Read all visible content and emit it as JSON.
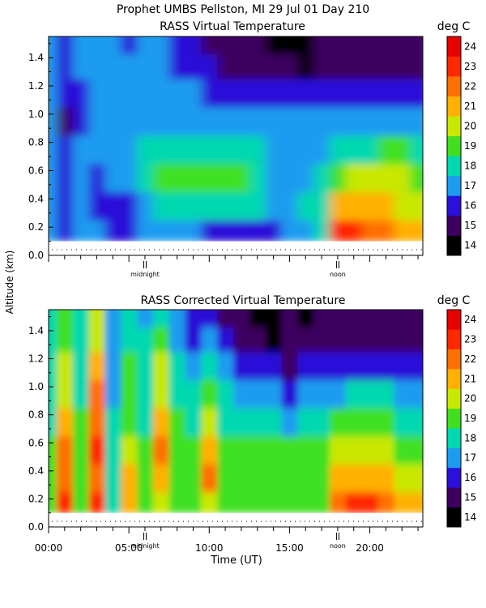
{
  "header": {
    "title": "Prophet  UMBS Pellston, MI  29 Jul 01 Day 210"
  },
  "shared": {
    "ylabel": "Altitude (km)",
    "xlabel": "Time (UT)",
    "x_tick_labels": [
      "00:00",
      "05:00",
      "10:00",
      "15:00",
      "20:00"
    ],
    "x_ticks_hours": [
      0,
      5,
      10,
      15,
      20
    ],
    "markers": [
      {
        "label": "midnight",
        "hour": 6
      },
      {
        "label": "noon",
        "hour": 18
      }
    ]
  },
  "chart_data": [
    {
      "type": "heatmap",
      "title": "RASS Virtual Temperature",
      "colorbar_label": "deg C",
      "xlim_hours": [
        0,
        23.3
      ],
      "ylim": [
        0.0,
        1.55
      ],
      "y_ticks": [
        0.0,
        0.2,
        0.4,
        0.6,
        0.8,
        1.0,
        1.2,
        1.4
      ],
      "colorbar_levels": [
        14,
        15,
        16,
        17,
        18,
        19,
        20,
        21,
        22,
        23,
        24
      ],
      "colorbar_colors": [
        "#000000",
        "#3d0060",
        "#2a10d8",
        "#1c9cf0",
        "#00d8b0",
        "#40e020",
        "#c8e800",
        "#ffb000",
        "#ff7000",
        "#ff2800",
        "#e80000"
      ],
      "x_hours": [
        0,
        1,
        2,
        3,
        4,
        5,
        6,
        7,
        8,
        9,
        10,
        11,
        12,
        13,
        14,
        15,
        16,
        17,
        18,
        19,
        20,
        21,
        22,
        23
      ],
      "y_km": [
        0.15,
        0.35,
        0.55,
        0.75,
        0.95,
        1.15,
        1.35,
        1.5
      ],
      "z_degC": [
        [
          17,
          16,
          17,
          17,
          16,
          16,
          17,
          17,
          17,
          17,
          16,
          16,
          16,
          16,
          16,
          17,
          17,
          18,
          23,
          23,
          22,
          22,
          21,
          21
        ],
        [
          17,
          16,
          17,
          16,
          16,
          16,
          17,
          18,
          18,
          18,
          18,
          18,
          18,
          18,
          17,
          17,
          18,
          18,
          21,
          21,
          21,
          21,
          20,
          20
        ],
        [
          17,
          16,
          17,
          16,
          17,
          17,
          18,
          19,
          19,
          19,
          19,
          19,
          19,
          18,
          17,
          17,
          17,
          18,
          19,
          20,
          20,
          20,
          20,
          19
        ],
        [
          17,
          16,
          17,
          17,
          17,
          17,
          18,
          18,
          18,
          18,
          18,
          18,
          18,
          18,
          17,
          17,
          17,
          17,
          18,
          18,
          18,
          19,
          19,
          18
        ],
        [
          17,
          15,
          16,
          17,
          17,
          17,
          17,
          17,
          17,
          17,
          17,
          17,
          17,
          17,
          17,
          17,
          17,
          17,
          17,
          17,
          17,
          17,
          17,
          17
        ],
        [
          17,
          16,
          16,
          17,
          17,
          17,
          17,
          17,
          17,
          17,
          16,
          16,
          16,
          16,
          16,
          16,
          16,
          16,
          16,
          16,
          16,
          16,
          16,
          16
        ],
        [
          17,
          16,
          17,
          17,
          17,
          17,
          17,
          17,
          16,
          16,
          16,
          15,
          15,
          15,
          15,
          15,
          14,
          15,
          15,
          15,
          15,
          15,
          15,
          15
        ],
        [
          17,
          16,
          17,
          17,
          17,
          16,
          17,
          17,
          16,
          16,
          15,
          15,
          15,
          15,
          14,
          14,
          14,
          15,
          15,
          15,
          15,
          15,
          15,
          15
        ]
      ]
    },
    {
      "type": "heatmap",
      "title": "RASS Corrected Virtual Temperature",
      "colorbar_label": "deg C",
      "xlim_hours": [
        0,
        23.3
      ],
      "ylim": [
        0.0,
        1.55
      ],
      "y_ticks": [
        0.0,
        0.2,
        0.4,
        0.6,
        0.8,
        1.0,
        1.2,
        1.4
      ],
      "colorbar_levels": [
        14,
        15,
        16,
        17,
        18,
        19,
        20,
        21,
        22,
        23,
        24
      ],
      "colorbar_colors": [
        "#000000",
        "#3d0060",
        "#2a10d8",
        "#1c9cf0",
        "#00d8b0",
        "#40e020",
        "#c8e800",
        "#ffb000",
        "#ff7000",
        "#ff2800",
        "#e80000"
      ],
      "x_hours": [
        0,
        1,
        2,
        3,
        4,
        5,
        6,
        7,
        8,
        9,
        10,
        11,
        12,
        13,
        14,
        15,
        16,
        17,
        18,
        19,
        20,
        21,
        22,
        23
      ],
      "y_km": [
        0.15,
        0.35,
        0.55,
        0.75,
        0.95,
        1.15,
        1.35,
        1.5
      ],
      "z_degC": [
        [
          19,
          23,
          19,
          23,
          18,
          21,
          19,
          20,
          19,
          19,
          20,
          19,
          19,
          19,
          19,
          19,
          19,
          19,
          22,
          23,
          23,
          22,
          21,
          21
        ],
        [
          19,
          22,
          19,
          22,
          18,
          21,
          19,
          21,
          19,
          19,
          22,
          19,
          19,
          19,
          19,
          19,
          19,
          19,
          21,
          21,
          21,
          21,
          20,
          20
        ],
        [
          19,
          22,
          19,
          23,
          18,
          20,
          19,
          22,
          19,
          19,
          21,
          19,
          19,
          19,
          19,
          19,
          19,
          19,
          20,
          20,
          20,
          20,
          19,
          19
        ],
        [
          18,
          21,
          19,
          22,
          18,
          19,
          18,
          21,
          19,
          18,
          20,
          18,
          18,
          18,
          18,
          17,
          18,
          18,
          19,
          19,
          19,
          19,
          18,
          18
        ],
        [
          18,
          20,
          18,
          22,
          17,
          19,
          18,
          20,
          18,
          18,
          19,
          18,
          17,
          17,
          17,
          16,
          17,
          17,
          17,
          18,
          18,
          18,
          17,
          17
        ],
        [
          18,
          20,
          18,
          21,
          17,
          19,
          18,
          20,
          18,
          17,
          18,
          17,
          16,
          16,
          16,
          15,
          16,
          16,
          16,
          16,
          16,
          16,
          16,
          16
        ],
        [
          18,
          19,
          18,
          20,
          17,
          18,
          18,
          19,
          17,
          16,
          17,
          16,
          15,
          15,
          14,
          15,
          15,
          15,
          15,
          15,
          15,
          15,
          15,
          15
        ],
        [
          18,
          19,
          18,
          20,
          17,
          18,
          17,
          18,
          17,
          16,
          16,
          15,
          15,
          14,
          14,
          15,
          14,
          15,
          15,
          15,
          15,
          15,
          15,
          15
        ]
      ]
    }
  ]
}
